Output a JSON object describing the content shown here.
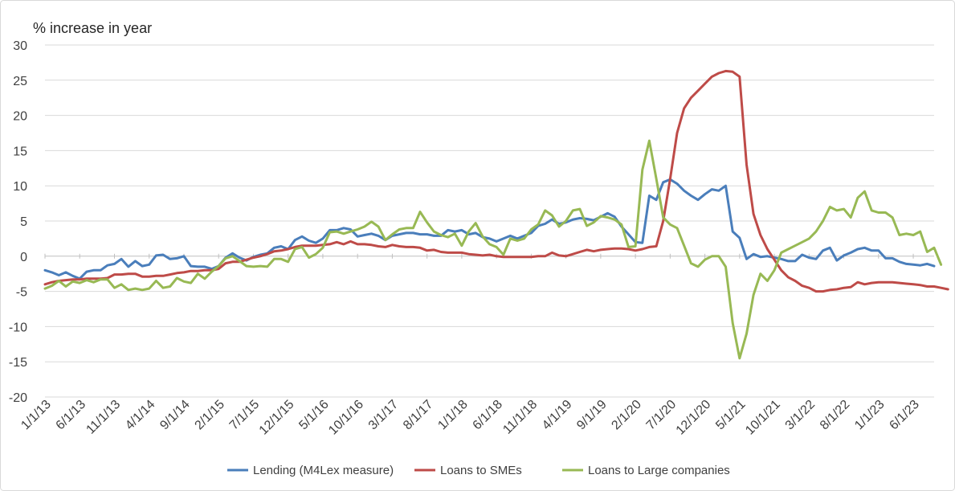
{
  "chart_data": {
    "type": "line",
    "ylabel": "% increase in year",
    "ylim": [
      -20,
      30
    ],
    "yticks": [
      -20,
      -15,
      -10,
      -5,
      0,
      5,
      10,
      15,
      20,
      25,
      30
    ],
    "grid": true,
    "legend_position": "bottom",
    "x_start": "2013-01",
    "x_frequency": "monthly",
    "x_tick_labels": [
      "1/1/13",
      "6/1/13",
      "11/1/13",
      "4/1/14",
      "9/1/14",
      "2/1/15",
      "7/1/15",
      "12/1/15",
      "5/1/16",
      "10/1/16",
      "3/1/17",
      "8/1/17",
      "1/1/18",
      "6/1/18",
      "11/1/18",
      "4/1/19",
      "9/1/19",
      "2/1/20",
      "7/1/20",
      "12/1/20",
      "5/1/21",
      "10/1/21",
      "3/1/22",
      "8/1/22",
      "1/1/23",
      "6/1/23"
    ],
    "series": [
      {
        "name": "Lending (M4Lex measure)",
        "color": "#4a7ebb",
        "values": [
          -2.0,
          -2.3,
          -2.7,
          -2.3,
          -2.8,
          -3.2,
          -2.2,
          -2.0,
          -2.0,
          -1.3,
          -1.1,
          -0.4,
          -1.5,
          -0.7,
          -1.4,
          -1.2,
          0.1,
          0.2,
          -0.4,
          -0.3,
          0.0,
          -1.4,
          -1.5,
          -1.5,
          -1.8,
          -1.4,
          -0.2,
          0.4,
          -0.2,
          -0.6,
          -0.1,
          0.2,
          0.4,
          1.2,
          1.4,
          1.0,
          2.3,
          2.8,
          2.2,
          1.9,
          2.5,
          3.7,
          3.7,
          4.0,
          3.8,
          2.8,
          3.0,
          3.2,
          2.9,
          2.3,
          2.9,
          3.1,
          3.3,
          3.3,
          3.1,
          3.1,
          2.9,
          2.9,
          3.7,
          3.5,
          3.7,
          3.1,
          3.3,
          2.7,
          2.5,
          2.1,
          2.5,
          2.9,
          2.5,
          2.9,
          3.3,
          4.3,
          4.6,
          5.2,
          4.6,
          4.8,
          5.2,
          5.4,
          5.3,
          5.1,
          5.6,
          6.1,
          5.6,
          4.2,
          3.1,
          2.0,
          1.9,
          8.6,
          8.0,
          10.5,
          10.9,
          10.3,
          9.3,
          8.6,
          8.0,
          8.8,
          9.5,
          9.3,
          10.0,
          3.5,
          2.6,
          -0.4,
          0.3,
          -0.1,
          0.0,
          -0.2,
          -0.4,
          -0.7,
          -0.7,
          0.2,
          -0.2,
          -0.4,
          0.8,
          1.2,
          -0.6,
          0.1,
          0.5,
          1.0,
          1.2,
          0.8,
          0.8,
          -0.3,
          -0.3,
          -0.8,
          -1.1,
          -1.2,
          -1.3,
          -1.1,
          -1.4
        ]
      },
      {
        "name": "Loans to SMEs",
        "color": "#be4b48",
        "values": [
          -4.0,
          -3.7,
          -3.5,
          -3.4,
          -3.3,
          -3.3,
          -3.2,
          -3.2,
          -3.2,
          -3.1,
          -2.6,
          -2.6,
          -2.5,
          -2.5,
          -2.9,
          -2.9,
          -2.8,
          -2.8,
          -2.6,
          -2.4,
          -2.3,
          -2.1,
          -2.1,
          -2.0,
          -2.0,
          -1.8,
          -1.0,
          -0.8,
          -0.8,
          -0.5,
          -0.2,
          0.0,
          0.3,
          0.7,
          0.8,
          1.0,
          1.3,
          1.5,
          1.5,
          1.5,
          1.6,
          1.7,
          2.0,
          1.7,
          2.1,
          1.7,
          1.7,
          1.6,
          1.4,
          1.3,
          1.6,
          1.4,
          1.3,
          1.3,
          1.2,
          0.8,
          0.9,
          0.6,
          0.5,
          0.5,
          0.5,
          0.3,
          0.2,
          0.1,
          0.2,
          0.0,
          -0.1,
          -0.1,
          -0.1,
          -0.1,
          -0.1,
          0.0,
          0.0,
          0.5,
          0.1,
          0.0,
          0.3,
          0.6,
          0.9,
          0.7,
          0.9,
          1.0,
          1.1,
          1.1,
          1.0,
          0.8,
          1.0,
          1.3,
          1.4,
          5.0,
          11.0,
          17.5,
          21.0,
          22.5,
          23.5,
          24.5,
          25.5,
          26.0,
          26.3,
          26.2,
          25.5,
          13.0,
          6.0,
          3.0,
          1.0,
          -0.5,
          -2.0,
          -3.0,
          -3.5,
          -4.2,
          -4.5,
          -5.0,
          -5.0,
          -4.8,
          -4.7,
          -4.5,
          -4.4,
          -3.7,
          -4.0,
          -3.8,
          -3.7,
          -3.7,
          -3.7,
          -3.8,
          -3.9,
          -4.0,
          -4.1,
          -4.3,
          -4.3,
          -4.5,
          -4.7
        ]
      },
      {
        "name": "Loans to Large companies",
        "color": "#98b954",
        "values": [
          -4.6,
          -4.2,
          -3.5,
          -4.3,
          -3.6,
          -3.8,
          -3.4,
          -3.7,
          -3.3,
          -3.3,
          -4.5,
          -4.0,
          -4.8,
          -4.6,
          -4.8,
          -4.6,
          -3.5,
          -4.5,
          -4.3,
          -3.1,
          -3.6,
          -3.8,
          -2.5,
          -3.2,
          -2.2,
          -1.4,
          -0.3,
          0.0,
          -0.7,
          -1.4,
          -1.5,
          -1.4,
          -1.5,
          -0.4,
          -0.4,
          -0.8,
          1.0,
          1.3,
          -0.2,
          0.3,
          1.2,
          3.4,
          3.5,
          3.2,
          3.5,
          3.8,
          4.2,
          4.9,
          4.2,
          2.3,
          3.1,
          3.8,
          4.0,
          4.0,
          6.3,
          4.8,
          3.5,
          3.0,
          2.7,
          3.2,
          1.5,
          3.5,
          4.7,
          2.8,
          1.7,
          1.3,
          0.2,
          2.5,
          2.2,
          2.5,
          3.8,
          4.5,
          6.5,
          5.8,
          4.2,
          5.0,
          6.5,
          6.7,
          4.3,
          4.8,
          5.7,
          5.5,
          5.2,
          4.5,
          1.3,
          1.4,
          12.3,
          16.4,
          11.0,
          5.5,
          4.5,
          4.0,
          1.5,
          -1.0,
          -1.5,
          -0.5,
          0.0,
          0.0,
          -1.5,
          -9.5,
          -14.5,
          -11.0,
          -5.5,
          -2.5,
          -3.5,
          -2.0,
          0.5,
          1.0,
          1.5,
          2.0,
          2.5,
          3.5,
          5.0,
          7.0,
          6.5,
          6.7,
          5.5,
          8.3,
          9.2,
          6.5,
          6.2,
          6.2,
          5.5,
          3.0,
          3.2,
          3.0,
          3.5,
          0.6,
          1.2,
          -1.2
        ]
      }
    ]
  }
}
